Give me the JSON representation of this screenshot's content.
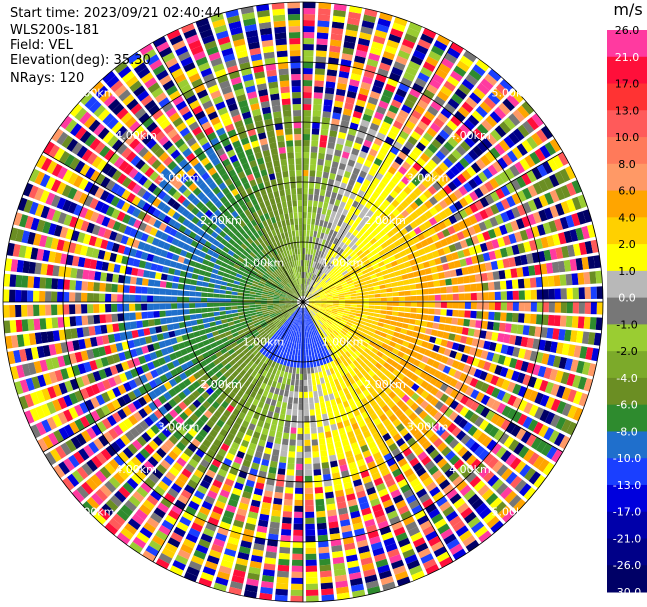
{
  "info": {
    "start_time": "Start time: 2023/09/21 02:40:44",
    "instrument": "WLS200s-181",
    "field": "Field: VEL",
    "elevation": "Elevation(deg): 35.30",
    "nrays": "NRays: 120"
  },
  "ring_labels": [
    "1.00km",
    "2.00km",
    "3.00km",
    "4.00km",
    "5.00km"
  ],
  "colorbar": {
    "unit": "m/s",
    "ticks": [
      "26.0",
      "21.0",
      "17.0",
      "13.0",
      "10.0",
      "8.0",
      "6.0",
      "4.0",
      "2.0",
      "1.0",
      "0.0",
      "-1.0",
      "-2.0",
      "-4.0",
      "-6.0",
      "-8.0",
      "-10.0",
      "-13.0",
      "-17.0",
      "-21.0",
      "-26.0",
      "-30.0"
    ],
    "colors": [
      "#ff3aa0",
      "#ff0f3a",
      "#ff3333",
      "#ff5a5a",
      "#ff7a5a",
      "#ff9966",
      "#ffa500",
      "#ffd000",
      "#ffff00",
      "#b8b8b8",
      "#777777",
      "#9acd32",
      "#7caa2a",
      "#6b8e23",
      "#2e8b2e",
      "#1f6fcc",
      "#1a3fff",
      "#0000dd",
      "#0000aa",
      "#000088",
      "#000066"
    ]
  }
}
